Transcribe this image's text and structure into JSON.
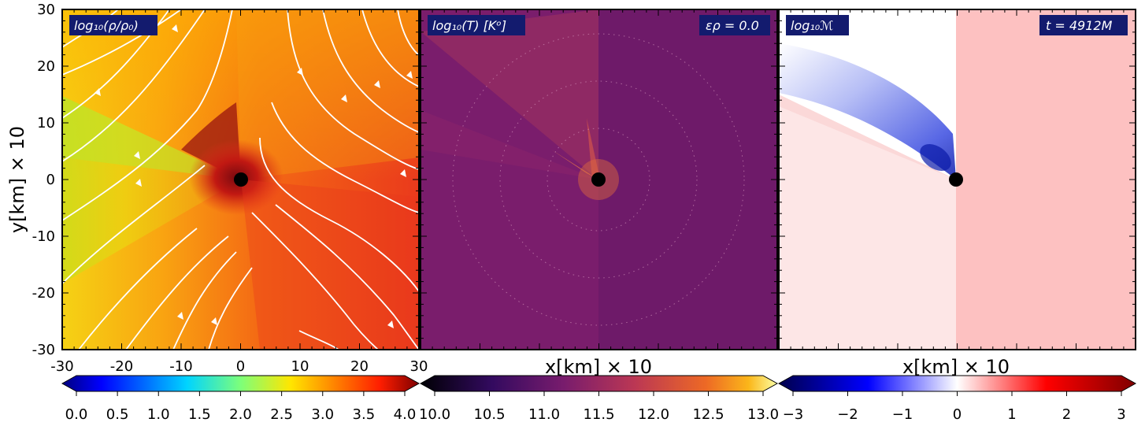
{
  "figure": {
    "panel_labels": [
      "log₁₀(ρ/ρ₀)",
      "log₁₀(T) [Kᵒ]",
      "log₁₀ℳ"
    ],
    "annotations": {
      "epsilon": "ερ = 0.0",
      "time": "t = 4912M"
    },
    "colors": {
      "label_box": "#131b6e",
      "black_hole": "#000000",
      "streamline": "#ffffff"
    }
  },
  "chart_data": [
    {
      "type": "heatmap",
      "title": "log₁₀(ρ/ρ₀)",
      "xlabel": "",
      "ylabel": "y[km] × 10",
      "xlim": [
        -30,
        30
      ],
      "ylim": [
        -30,
        30
      ],
      "x_ticks": [
        "-30",
        "-20",
        "-10",
        "0",
        "10",
        "20",
        "30"
      ],
      "y_ticks": [
        "30",
        "20",
        "10",
        "0",
        "-10",
        "-20",
        "-30"
      ],
      "colorbar": {
        "min": 0.0,
        "max": 4.0,
        "colormap": "jet",
        "ticks": [
          "0.0",
          "0.5",
          "1.0",
          "1.5",
          "2.0",
          "2.5",
          "3.0",
          "3.5",
          "4.0"
        ]
      },
      "overlay": "streamlines",
      "black_hole_center": [
        0,
        0
      ]
    },
    {
      "type": "heatmap",
      "title": "log₁₀(T) [Kᵒ]",
      "xlabel": "x[km] × 10",
      "ylabel": "",
      "xlim": [
        -30,
        30
      ],
      "ylim": [
        -30,
        30
      ],
      "colorbar": {
        "min": 10.0,
        "max": 13.0,
        "colormap": "inferno",
        "ticks": [
          "10.0",
          "10.5",
          "11.0",
          "11.5",
          "12.0",
          "12.5",
          "13.0"
        ]
      },
      "annotation": "ερ = 0.0",
      "black_hole_center": [
        0,
        0
      ]
    },
    {
      "type": "heatmap",
      "title": "log₁₀ℳ",
      "xlabel": "x[km] × 10",
      "ylabel": "",
      "xlim": [
        -30,
        30
      ],
      "ylim": [
        -30,
        30
      ],
      "colorbar": {
        "min": -3,
        "max": 3,
        "colormap": "seismic",
        "ticks": [
          "−3",
          "−2",
          "−1",
          "0",
          "1",
          "2",
          "3"
        ]
      },
      "annotation": "t = 4912M",
      "black_hole_center": [
        0,
        0
      ]
    }
  ]
}
